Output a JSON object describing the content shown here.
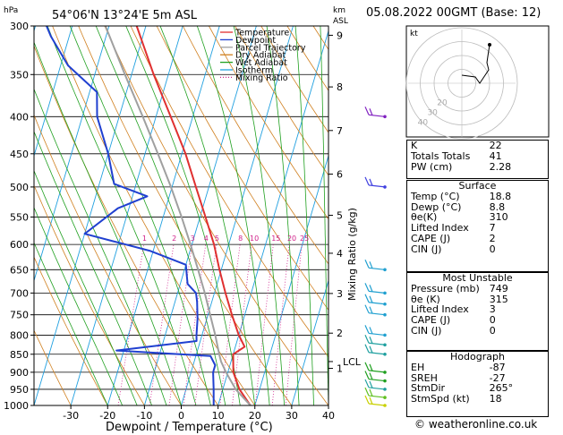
{
  "header": {
    "location": "54°06'N  13°24'E  5m  ASL",
    "date": "05.08.2022  00GMT  (Base: 12)",
    "left_unit": "hPa",
    "right_unit_top": "km",
    "right_unit_bottom": "ASL"
  },
  "chart_data": {
    "type": "line",
    "subtype": "skew-T log-P diagram",
    "xlabel": "Dewpoint / Temperature (°C)",
    "right_axis_label": "Mixing Ratio (g/kg)",
    "x_ticks": [
      -30,
      -20,
      -10,
      0,
      10,
      20,
      30,
      40
    ],
    "pressure_ticks": [
      300,
      350,
      400,
      450,
      500,
      550,
      600,
      650,
      700,
      750,
      800,
      850,
      900,
      950,
      1000
    ],
    "height_km_ticks": [
      {
        "p": 309,
        "km": "9"
      },
      {
        "p": 364,
        "km": "8"
      },
      {
        "p": 418,
        "km": "7"
      },
      {
        "p": 480,
        "km": "6"
      },
      {
        "p": 547,
        "km": "5"
      },
      {
        "p": 617,
        "km": "4"
      },
      {
        "p": 701,
        "km": "3"
      },
      {
        "p": 795,
        "km": "2"
      },
      {
        "p": 889,
        "km": "1"
      }
    ],
    "lcl_label": "LCL",
    "lcl_pressure": 870,
    "mixing_ratio_labels": [
      "1",
      "2",
      "3",
      "4",
      "5",
      "8",
      "10",
      "15",
      "20",
      "25"
    ],
    "mixing_ratio_label_pressure": 588,
    "legend": [
      "Temperature",
      "Dewpoint",
      "Parcel Trajectory",
      "Dry Adiabat",
      "Wet Adiabat",
      "Isotherm",
      "Mixing Ratio"
    ],
    "colors": {
      "temperature": "#e03030",
      "dewpoint": "#2040d0",
      "parcel": "#a0a0a0",
      "dry_adiabat": "#d08020",
      "wet_adiabat": "#20a020",
      "isotherm": "#20a0e0",
      "mixing_ratio": "#d0208a"
    },
    "series": [
      {
        "name": "Temperature",
        "points": [
          {
            "p": 1000,
            "t": 18.8
          },
          {
            "p": 950,
            "t": 14.5
          },
          {
            "p": 900,
            "t": 11.5
          },
          {
            "p": 850,
            "t": 10.0
          },
          {
            "p": 830,
            "t": 12.5
          },
          {
            "p": 800,
            "t": 10.0
          },
          {
            "p": 750,
            "t": 6.5
          },
          {
            "p": 700,
            "t": 3.0
          },
          {
            "p": 650,
            "t": -0.5
          },
          {
            "p": 600,
            "t": -4.0
          },
          {
            "p": 550,
            "t": -8.5
          },
          {
            "p": 500,
            "t": -13.5
          },
          {
            "p": 450,
            "t": -19.0
          },
          {
            "p": 400,
            "t": -26.0
          },
          {
            "p": 350,
            "t": -34.0
          },
          {
            "p": 300,
            "t": -42.5
          }
        ]
      },
      {
        "name": "Dewpoint",
        "points": [
          {
            "p": 1000,
            "t": 8.8
          },
          {
            "p": 950,
            "t": 7.5
          },
          {
            "p": 900,
            "t": 6.0
          },
          {
            "p": 880,
            "t": 6.0
          },
          {
            "p": 855,
            "t": 4.0
          },
          {
            "p": 840,
            "t": -22.0
          },
          {
            "p": 815,
            "t": -1.0
          },
          {
            "p": 800,
            "t": -1.5
          },
          {
            "p": 760,
            "t": -2.5
          },
          {
            "p": 720,
            "t": -4.0
          },
          {
            "p": 700,
            "t": -5.0
          },
          {
            "p": 680,
            "t": -8.0
          },
          {
            "p": 660,
            "t": -9.0
          },
          {
            "p": 640,
            "t": -10.0
          },
          {
            "p": 612,
            "t": -21.0
          },
          {
            "p": 580,
            "t": -40.0
          },
          {
            "p": 535,
            "t": -33.0
          },
          {
            "p": 515,
            "t": -26.0
          },
          {
            "p": 495,
            "t": -36.0
          },
          {
            "p": 450,
            "t": -40.0
          },
          {
            "p": 400,
            "t": -46.0
          },
          {
            "p": 370,
            "t": -48.0
          },
          {
            "p": 340,
            "t": -58.0
          },
          {
            "p": 310,
            "t": -65.0
          },
          {
            "p": 300,
            "t": -67.0
          }
        ]
      },
      {
        "name": "Parcel Trajectory",
        "points": [
          {
            "p": 1000,
            "t": 18.8
          },
          {
            "p": 950,
            "t": 13.5
          },
          {
            "p": 900,
            "t": 9.5
          },
          {
            "p": 870,
            "t": 7.3
          },
          {
            "p": 850,
            "t": 6.2
          },
          {
            "p": 800,
            "t": 3.6
          },
          {
            "p": 750,
            "t": 0.6
          },
          {
            "p": 700,
            "t": -2.6
          },
          {
            "p": 650,
            "t": -6.3
          },
          {
            "p": 600,
            "t": -10.4
          },
          {
            "p": 550,
            "t": -15.0
          },
          {
            "p": 500,
            "t": -20.3
          },
          {
            "p": 450,
            "t": -26.5
          },
          {
            "p": 400,
            "t": -33.6
          },
          {
            "p": 350,
            "t": -41.8
          },
          {
            "p": 300,
            "t": -51.0
          }
        ]
      }
    ],
    "wind_barbs": [
      {
        "p": 1000,
        "color": "#c8d000"
      },
      {
        "p": 975,
        "color": "#60c020"
      },
      {
        "p": 950,
        "color": "#20a0a0"
      },
      {
        "p": 925,
        "color": "#20a020"
      },
      {
        "p": 900,
        "color": "#20a020"
      },
      {
        "p": 850,
        "color": "#20a0a0"
      },
      {
        "p": 825,
        "color": "#20a0a0"
      },
      {
        "p": 800,
        "color": "#20a0d0"
      },
      {
        "p": 750,
        "color": "#20a0d0"
      },
      {
        "p": 725,
        "color": "#20a0d0"
      },
      {
        "p": 700,
        "color": "#20a0d0"
      },
      {
        "p": 650,
        "color": "#20a0d0"
      },
      {
        "p": 500,
        "color": "#4040e0"
      },
      {
        "p": 400,
        "color": "#8020c0"
      }
    ]
  },
  "hodograph": {
    "unit_label": "kt",
    "ring_labels": [
      "40",
      "30",
      "20"
    ]
  },
  "indices": {
    "rows": [
      {
        "label": "K",
        "value": "22"
      },
      {
        "label": "Totals Totals",
        "value": "41"
      },
      {
        "label": "PW (cm)",
        "value": "2.28"
      }
    ]
  },
  "surface": {
    "title": "Surface",
    "rows": [
      {
        "label": "Temp (°C)",
        "value": "18.8"
      },
      {
        "label": "Dewp (°C)",
        "value": "8.8"
      },
      {
        "label": "θe(K)",
        "value": "310"
      },
      {
        "label": "Lifted Index",
        "value": "7"
      },
      {
        "label": "CAPE (J)",
        "value": "2"
      },
      {
        "label": "CIN (J)",
        "value": "0"
      }
    ]
  },
  "most_unstable": {
    "title": "Most Unstable",
    "rows": [
      {
        "label": "Pressure (mb)",
        "value": "749"
      },
      {
        "label": "θe (K)",
        "value": "315"
      },
      {
        "label": "Lifted Index",
        "value": "3"
      },
      {
        "label": "CAPE (J)",
        "value": "0"
      },
      {
        "label": "CIN (J)",
        "value": "0"
      }
    ]
  },
  "hodograph_box": {
    "title": "Hodograph",
    "rows": [
      {
        "label": "EH",
        "value": "-87"
      },
      {
        "label": "SREH",
        "value": "-27"
      },
      {
        "label": "StmDir",
        "value": "265°"
      },
      {
        "label": "StmSpd (kt)",
        "value": "18"
      }
    ]
  },
  "footer": {
    "credit": "© weatheronline.co.uk"
  }
}
